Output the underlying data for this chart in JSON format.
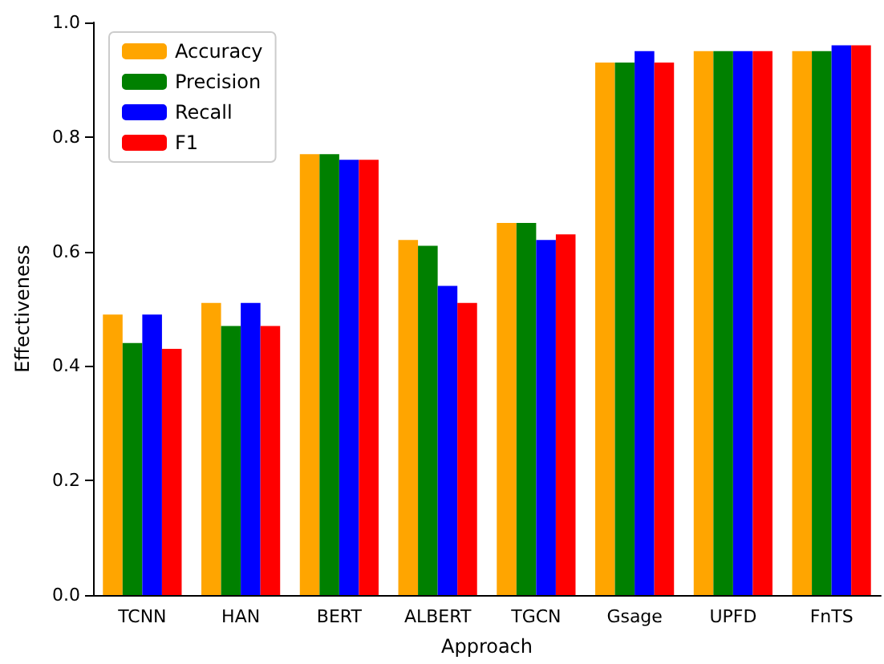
{
  "chart_data": {
    "type": "bar",
    "xlabel": "Approach",
    "ylabel": "Effectiveness",
    "categories": [
      "TCNN",
      "HAN",
      "BERT",
      "ALBERT",
      "TGCN",
      "Gsage",
      "UPFD",
      "FnTS"
    ],
    "series": [
      {
        "name": "Accuracy",
        "color": "#ffa500",
        "values": [
          0.49,
          0.51,
          0.77,
          0.62,
          0.65,
          0.93,
          0.95,
          0.95
        ]
      },
      {
        "name": "Precision",
        "color": "#008000",
        "values": [
          0.44,
          0.47,
          0.77,
          0.61,
          0.65,
          0.93,
          0.95,
          0.95
        ]
      },
      {
        "name": "Recall",
        "color": "#0000ff",
        "values": [
          0.49,
          0.51,
          0.76,
          0.54,
          0.62,
          0.95,
          0.95,
          0.96
        ]
      },
      {
        "name": "F1",
        "color": "#ff0000",
        "values": [
          0.43,
          0.47,
          0.76,
          0.51,
          0.63,
          0.93,
          0.95,
          0.96
        ]
      }
    ],
    "ylim": [
      0,
      1.0
    ],
    "yticks": [
      {
        "value": 0,
        "label": "0.0"
      },
      0.2,
      0.4,
      0.6,
      0.8,
      {
        "value": 1,
        "label": "1.0"
      }
    ],
    "grid": false,
    "legend": "top left"
  }
}
